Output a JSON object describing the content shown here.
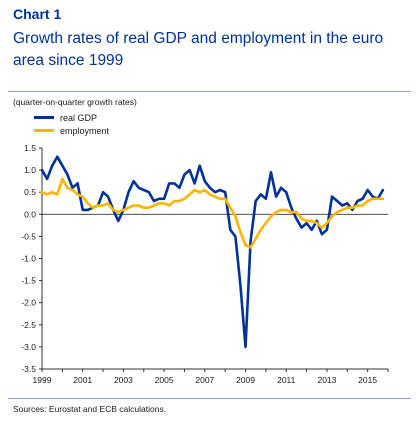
{
  "header": {
    "label": "Chart 1",
    "title": "Growth rates of real GDP and employment in the euro area since 1999"
  },
  "units_note": "(quarter-on-quarter growth rates)",
  "sources": "Sources: Eurostat and ECB calculations.",
  "colors": {
    "gdp": "#003299",
    "employment": "#ffb400",
    "accent": "#003299",
    "axis": "#333333"
  },
  "chart_data": {
    "type": "line",
    "title": "Growth rates of real GDP and employment in the euro area since 1999",
    "xlabel": "",
    "ylabel": "",
    "xlim": [
      1999.0,
      2016.0
    ],
    "ylim": [
      -3.5,
      1.5
    ],
    "yticks": [
      1.5,
      1.0,
      0.5,
      0.0,
      -0.5,
      -1.0,
      -1.5,
      -2.0,
      -2.5,
      -3.0,
      -3.5
    ],
    "ytick_labels": [
      "1.5",
      "1.0",
      "0.5",
      "0.0",
      "-0.5",
      "-1.0",
      "-1.5",
      "-2.0",
      "-2.5",
      "-3.0",
      "-3.5"
    ],
    "xticks": [
      1999,
      2001,
      2003,
      2005,
      2007,
      2009,
      2011,
      2013,
      2015
    ],
    "xtick_labels": [
      "1999",
      "2001",
      "2003",
      "2005",
      "2007",
      "2009",
      "2011",
      "2013",
      "2015"
    ],
    "grid": false,
    "legend_position": "top-left",
    "series": [
      {
        "name": "real GDP",
        "color": "#003299",
        "x": [
          1999.0,
          1999.25,
          1999.5,
          1999.75,
          2000.0,
          2000.25,
          2000.5,
          2000.75,
          2001.0,
          2001.25,
          2001.5,
          2001.75,
          2002.0,
          2002.25,
          2002.5,
          2002.75,
          2003.0,
          2003.25,
          2003.5,
          2003.75,
          2004.0,
          2004.25,
          2004.5,
          2004.75,
          2005.0,
          2005.25,
          2005.5,
          2005.75,
          2006.0,
          2006.25,
          2006.5,
          2006.75,
          2007.0,
          2007.25,
          2007.5,
          2007.75,
          2008.0,
          2008.25,
          2008.5,
          2008.75,
          2009.0,
          2009.25,
          2009.5,
          2009.75,
          2010.0,
          2010.25,
          2010.5,
          2010.75,
          2011.0,
          2011.25,
          2011.5,
          2011.75,
          2012.0,
          2012.25,
          2012.5,
          2012.75,
          2013.0,
          2013.25,
          2013.5,
          2013.75,
          2014.0,
          2014.25,
          2014.5,
          2014.75,
          2015.0,
          2015.25,
          2015.5,
          2015.75
        ],
        "values": [
          1.0,
          0.8,
          1.1,
          1.3,
          1.1,
          0.9,
          0.6,
          0.7,
          0.1,
          0.1,
          0.15,
          0.2,
          0.5,
          0.4,
          0.1,
          -0.15,
          0.1,
          0.5,
          0.75,
          0.6,
          0.55,
          0.5,
          0.3,
          0.35,
          0.35,
          0.7,
          0.7,
          0.6,
          0.9,
          1.0,
          0.7,
          1.1,
          0.75,
          0.6,
          0.5,
          0.55,
          0.5,
          -0.35,
          -0.5,
          -1.6,
          -3.0,
          -0.6,
          0.3,
          0.45,
          0.35,
          0.95,
          0.4,
          0.6,
          0.5,
          0.15,
          -0.1,
          -0.3,
          -0.2,
          -0.35,
          -0.15,
          -0.45,
          -0.35,
          0.4,
          0.3,
          0.2,
          0.25,
          0.1,
          0.3,
          0.35,
          0.55,
          0.4,
          0.35,
          0.55
        ]
      },
      {
        "name": "employment",
        "color": "#ffb400",
        "x": [
          1999.0,
          1999.25,
          1999.5,
          1999.75,
          2000.0,
          2000.25,
          2000.5,
          2000.75,
          2001.0,
          2001.25,
          2001.5,
          2001.75,
          2002.0,
          2002.25,
          2002.5,
          2002.75,
          2003.0,
          2003.25,
          2003.5,
          2003.75,
          2004.0,
          2004.25,
          2004.5,
          2004.75,
          2005.0,
          2005.25,
          2005.5,
          2005.75,
          2006.0,
          2006.25,
          2006.5,
          2006.75,
          2007.0,
          2007.25,
          2007.5,
          2007.75,
          2008.0,
          2008.25,
          2008.5,
          2008.75,
          2009.0,
          2009.25,
          2009.5,
          2009.75,
          2010.0,
          2010.25,
          2010.5,
          2010.75,
          2011.0,
          2011.25,
          2011.5,
          2011.75,
          2012.0,
          2012.25,
          2012.5,
          2012.75,
          2013.0,
          2013.25,
          2013.5,
          2013.75,
          2014.0,
          2014.25,
          2014.5,
          2014.75,
          2015.0,
          2015.25,
          2015.5,
          2015.75
        ],
        "values": [
          0.5,
          0.45,
          0.5,
          0.45,
          0.8,
          0.6,
          0.55,
          0.45,
          0.4,
          0.25,
          0.15,
          0.2,
          0.2,
          0.25,
          0.1,
          0.05,
          0.1,
          0.15,
          0.2,
          0.2,
          0.15,
          0.15,
          0.2,
          0.25,
          0.25,
          0.2,
          0.3,
          0.3,
          0.35,
          0.45,
          0.55,
          0.5,
          0.55,
          0.45,
          0.4,
          0.35,
          0.35,
          0.15,
          -0.05,
          -0.4,
          -0.7,
          -0.75,
          -0.55,
          -0.35,
          -0.2,
          -0.05,
          0.05,
          0.1,
          0.1,
          0.05,
          0.05,
          -0.1,
          -0.15,
          -0.15,
          -0.2,
          -0.3,
          -0.2,
          -0.05,
          0.05,
          0.1,
          0.15,
          0.15,
          0.2,
          0.2,
          0.3,
          0.35,
          0.35,
          0.35
        ]
      }
    ]
  }
}
